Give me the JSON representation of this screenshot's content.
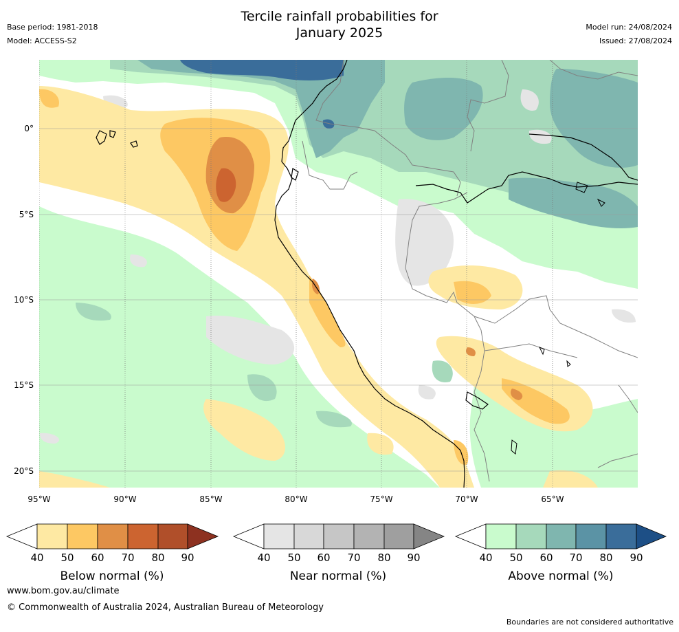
{
  "header": {
    "title_line1": "Tercile rainfall probabilities for",
    "title_line2": "January 2025",
    "base_period": "Base period: 1981-2018",
    "model": "Model: ACCESS-S2",
    "model_run": "Model run: 24/08/2024",
    "issued": "Issued: 27/08/2024"
  },
  "map": {
    "lat_labels": [
      "0°",
      "5°S",
      "10°S",
      "15°S",
      "20°S"
    ],
    "lon_labels": [
      "95°W",
      "90°W",
      "85°W",
      "80°W",
      "75°W",
      "70°W",
      "65°W"
    ],
    "ocean_color": "#ffffff",
    "coast_color": "#000000",
    "border_color": "#808080"
  },
  "legends": [
    {
      "label": "Below normal (%)",
      "ticks": [
        "40",
        "50",
        "60",
        "70",
        "80",
        "90"
      ],
      "colors": [
        "#fee9a3",
        "#fdc863",
        "#e08f46",
        "#cc6430",
        "#b04f2a",
        "#8d3120"
      ]
    },
    {
      "label": "Near normal (%)",
      "ticks": [
        "40",
        "50",
        "60",
        "70",
        "80",
        "90"
      ],
      "colors": [
        "#e5e5e5",
        "#d8d8d8",
        "#c6c6c6",
        "#b3b3b3",
        "#9f9f9f",
        "#858585"
      ]
    },
    {
      "label": "Above normal (%)",
      "ticks": [
        "40",
        "50",
        "60",
        "70",
        "80",
        "90"
      ],
      "colors": [
        "#c9fbcd",
        "#a6d9bb",
        "#7fb6af",
        "#5b93a5",
        "#3a6d9a",
        "#1d4f86"
      ]
    }
  ],
  "footer": {
    "url": "www.bom.gov.au/climate",
    "copyright": "© Commonwealth of Australia 2024, Australian Bureau of Meteorology",
    "disclaimer": "Boundaries are not considered authoritative"
  }
}
